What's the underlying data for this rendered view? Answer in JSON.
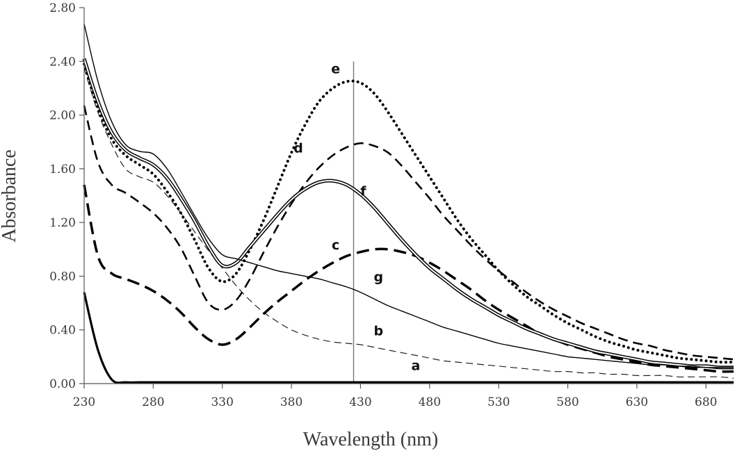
{
  "chart_data": {
    "type": "line",
    "xlabel": "Wavelength  (nm)",
    "ylabel": "Absorbance",
    "xlim": [
      230,
      700
    ],
    "ylim": [
      0,
      2.8
    ],
    "x_ticks": [
      "230",
      "280",
      "330",
      "380",
      "430",
      "480",
      "530",
      "580",
      "630",
      "680"
    ],
    "y_ticks": [
      "0.00",
      "0.40",
      "0.80",
      "1.20",
      "1.60",
      "2.00",
      "2.40",
      "2.80"
    ],
    "reference_line_x": 425,
    "x": [
      230,
      240,
      250,
      260,
      270,
      280,
      290,
      300,
      310,
      320,
      330,
      340,
      350,
      360,
      370,
      380,
      390,
      400,
      410,
      420,
      430,
      440,
      450,
      460,
      470,
      480,
      490,
      500,
      510,
      520,
      530,
      540,
      550,
      560,
      570,
      580,
      590,
      600,
      610,
      620,
      630,
      640,
      650,
      660,
      670,
      680,
      690,
      700
    ],
    "series": [
      {
        "name": "a",
        "style": "solid-thick",
        "values": [
          0.68,
          0.25,
          0.03,
          0.01,
          0.01,
          0.01,
          0.01,
          0.01,
          0.01,
          0.01,
          0.01,
          0.01,
          0.01,
          0.01,
          0.01,
          0.01,
          0.01,
          0.01,
          0.01,
          0.01,
          0.01,
          0.01,
          0.01,
          0.01,
          0.01,
          0.01,
          0.01,
          0.01,
          0.01,
          0.01,
          0.01,
          0.01,
          0.01,
          0.01,
          0.01,
          0.01,
          0.01,
          0.01,
          0.01,
          0.01,
          0.01,
          0.01,
          0.01,
          0.01,
          0.01,
          0.01,
          0.01,
          0.01
        ]
      },
      {
        "name": "b",
        "style": "dashed-thin",
        "values": [
          2.35,
          2.02,
          1.78,
          1.6,
          1.54,
          1.5,
          1.4,
          1.27,
          1.13,
          0.99,
          0.86,
          0.73,
          0.62,
          0.53,
          0.46,
          0.4,
          0.36,
          0.33,
          0.31,
          0.3,
          0.29,
          0.27,
          0.25,
          0.23,
          0.21,
          0.19,
          0.17,
          0.16,
          0.15,
          0.14,
          0.13,
          0.12,
          0.11,
          0.1,
          0.09,
          0.09,
          0.08,
          0.08,
          0.07,
          0.07,
          0.06,
          0.06,
          0.06,
          0.05,
          0.05,
          0.05,
          0.05,
          0.04
        ]
      },
      {
        "name": "c",
        "style": "dashed-thick",
        "values": [
          1.48,
          0.95,
          0.82,
          0.78,
          0.74,
          0.69,
          0.62,
          0.53,
          0.42,
          0.33,
          0.29,
          0.33,
          0.42,
          0.52,
          0.61,
          0.69,
          0.77,
          0.84,
          0.9,
          0.95,
          0.98,
          1.0,
          1.0,
          0.98,
          0.95,
          0.9,
          0.84,
          0.77,
          0.7,
          0.62,
          0.55,
          0.49,
          0.43,
          0.37,
          0.33,
          0.29,
          0.26,
          0.23,
          0.2,
          0.18,
          0.16,
          0.14,
          0.13,
          0.12,
          0.11,
          0.1,
          0.09,
          0.09
        ]
      },
      {
        "name": "d",
        "style": "dashed-medium",
        "values": [
          2.07,
          1.65,
          1.48,
          1.42,
          1.35,
          1.27,
          1.16,
          1.01,
          0.8,
          0.6,
          0.55,
          0.62,
          0.78,
          0.98,
          1.17,
          1.34,
          1.49,
          1.61,
          1.7,
          1.76,
          1.79,
          1.77,
          1.72,
          1.62,
          1.5,
          1.38,
          1.25,
          1.14,
          1.03,
          0.93,
          0.84,
          0.76,
          0.68,
          0.61,
          0.55,
          0.5,
          0.45,
          0.41,
          0.37,
          0.33,
          0.3,
          0.28,
          0.25,
          0.23,
          0.21,
          0.2,
          0.19,
          0.18
        ]
      },
      {
        "name": "e",
        "style": "dotted",
        "values": [
          2.38,
          2.05,
          1.82,
          1.7,
          1.63,
          1.56,
          1.43,
          1.27,
          1.07,
          0.86,
          0.76,
          0.82,
          1.0,
          1.22,
          1.47,
          1.72,
          1.93,
          2.1,
          2.2,
          2.25,
          2.24,
          2.16,
          2.02,
          1.86,
          1.7,
          1.54,
          1.38,
          1.22,
          1.08,
          0.96,
          0.84,
          0.74,
          0.65,
          0.58,
          0.51,
          0.45,
          0.4,
          0.35,
          0.31,
          0.28,
          0.25,
          0.23,
          0.21,
          0.19,
          0.18,
          0.17,
          0.16,
          0.16
        ]
      },
      {
        "name": "f",
        "style": "double-line",
        "values": [
          2.42,
          2.1,
          1.87,
          1.74,
          1.68,
          1.63,
          1.53,
          1.38,
          1.21,
          1.02,
          0.88,
          0.9,
          1.02,
          1.14,
          1.26,
          1.37,
          1.45,
          1.5,
          1.51,
          1.48,
          1.41,
          1.31,
          1.19,
          1.07,
          0.96,
          0.86,
          0.78,
          0.7,
          0.63,
          0.57,
          0.51,
          0.46,
          0.41,
          0.37,
          0.33,
          0.3,
          0.27,
          0.24,
          0.22,
          0.2,
          0.18,
          0.16,
          0.15,
          0.14,
          0.13,
          0.13,
          0.12,
          0.12
        ]
      },
      {
        "name": "g",
        "style": "solid-thin",
        "values": [
          2.68,
          2.25,
          1.95,
          1.78,
          1.73,
          1.71,
          1.6,
          1.43,
          1.25,
          1.08,
          0.96,
          0.93,
          0.9,
          0.87,
          0.84,
          0.82,
          0.8,
          0.78,
          0.75,
          0.72,
          0.68,
          0.63,
          0.58,
          0.54,
          0.5,
          0.46,
          0.42,
          0.39,
          0.36,
          0.33,
          0.3,
          0.28,
          0.26,
          0.24,
          0.22,
          0.2,
          0.19,
          0.18,
          0.17,
          0.16,
          0.15,
          0.14,
          0.14,
          0.13,
          0.13,
          0.12,
          0.12,
          0.12
        ]
      }
    ],
    "series_labels": [
      {
        "text": "a",
        "x": 470,
        "y": 0.1
      },
      {
        "text": "b",
        "x": 443,
        "y": 0.36
      },
      {
        "text": "c",
        "x": 412,
        "y": 1.0
      },
      {
        "text": "d",
        "x": 385,
        "y": 1.72
      },
      {
        "text": "e",
        "x": 412,
        "y": 2.31
      },
      {
        "text": "f",
        "x": 432,
        "y": 1.4
      },
      {
        "text": "g",
        "x": 443,
        "y": 0.76
      }
    ]
  }
}
